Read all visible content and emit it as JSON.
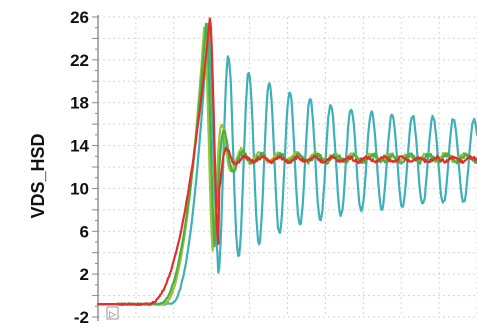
{
  "chart_data": {
    "type": "line",
    "ylabel": "VDS_HSD",
    "xlabel": "",
    "title": "",
    "ylim": [
      -2,
      26
    ],
    "xlim": [
      0,
      100
    ],
    "yticks": [
      -2,
      2,
      6,
      10,
      14,
      18,
      22,
      26
    ],
    "grid": true,
    "legend": "none",
    "colors": {
      "grid": "#d4d4d4",
      "axis": "#8a8a8a",
      "text": "#111111"
    },
    "series": [
      {
        "color": "#3fb0b8",
        "baseline": -0.8,
        "rise_start": 19,
        "rise_end": 29,
        "final": 12.6,
        "peak": 25.3,
        "first_min": 3.6,
        "second_peak": 23.2,
        "period": 5.4,
        "decay": 0.012,
        "amplitude_floor": 3.6,
        "noise": 0.35
      },
      {
        "color": "#9cc33b",
        "baseline": -0.8,
        "rise_start": 17,
        "rise_end": 28,
        "final": 12.9,
        "peak": 25.0,
        "first_min": 3.8,
        "second_peak": 20.4,
        "period": 4.9,
        "decay": 0.1,
        "amplitude_floor": 0.3,
        "noise": 0.45
      },
      {
        "color": "#48b04b",
        "baseline": -0.8,
        "rise_start": 16,
        "rise_end": 28.5,
        "final": 12.8,
        "peak": 25.4,
        "first_min": 4.2,
        "second_peak": 19.0,
        "period": 4.9,
        "decay": 0.1,
        "amplitude_floor": 0.3,
        "noise": 0.4
      },
      {
        "color": "#e0302a",
        "baseline": -0.8,
        "rise_start": 13,
        "rise_end": 29.5,
        "final": 12.7,
        "peak": 25.8,
        "first_min": 4.8,
        "second_peak": 16.0,
        "period": 4.6,
        "decay": 0.14,
        "amplitude_floor": 0.2,
        "noise": 0.3
      }
    ]
  },
  "ui": {
    "scroll_marker_symbol": "▷"
  }
}
